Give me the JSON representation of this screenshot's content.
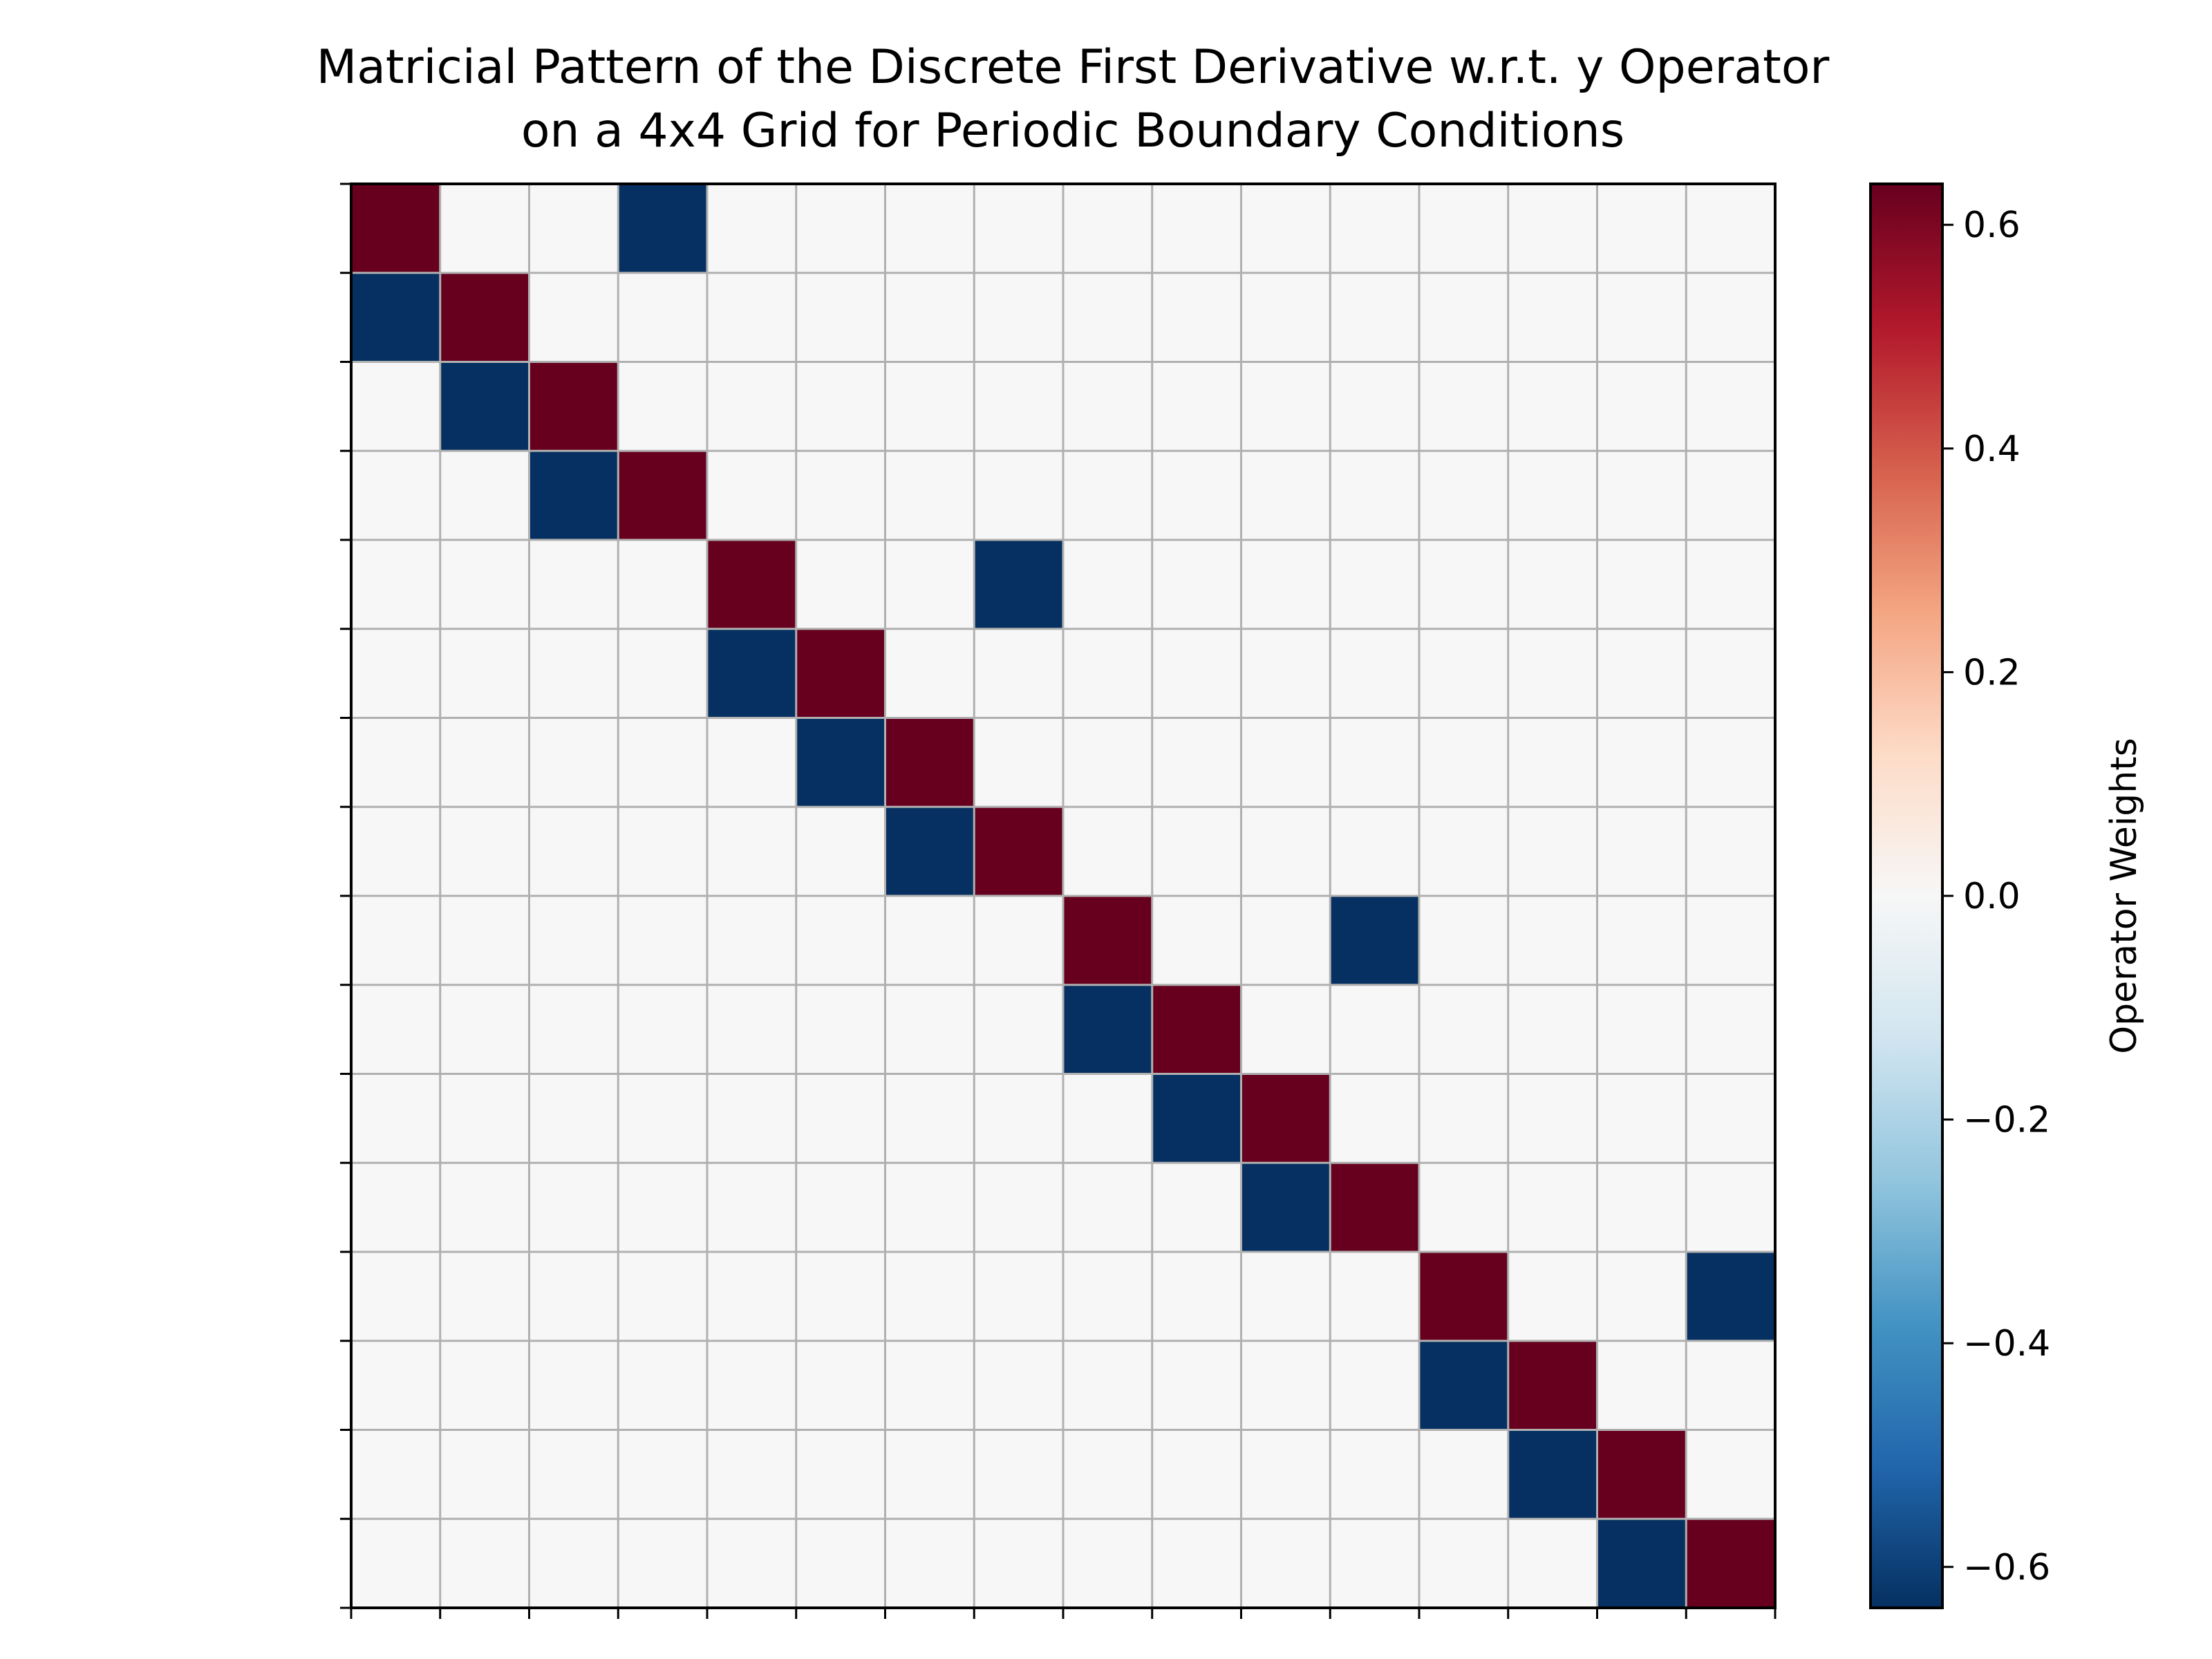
{
  "chart_data": {
    "type": "heatmap",
    "title": "Matricial Pattern of the Discrete First Derivative w.r.t. y Operator",
    "subtitle": "on a 4x4 Grid for Periodic Boundary Conditions",
    "rows": 16,
    "cols": 16,
    "grid": true,
    "x_tick_labels_visible": false,
    "y_tick_labels_visible": false,
    "colormap": "RdBu_r",
    "vmin": -0.6366,
    "vmax": 0.6366,
    "values": [
      [
        0.6366,
        0,
        0,
        -0.6366,
        0,
        0,
        0,
        0,
        0,
        0,
        0,
        0,
        0,
        0,
        0,
        0
      ],
      [
        -0.6366,
        0.6366,
        0,
        0,
        0,
        0,
        0,
        0,
        0,
        0,
        0,
        0,
        0,
        0,
        0,
        0
      ],
      [
        0,
        -0.6366,
        0.6366,
        0,
        0,
        0,
        0,
        0,
        0,
        0,
        0,
        0,
        0,
        0,
        0,
        0
      ],
      [
        0,
        0,
        -0.6366,
        0.6366,
        0,
        0,
        0,
        0,
        0,
        0,
        0,
        0,
        0,
        0,
        0,
        0
      ],
      [
        0,
        0,
        0,
        0,
        0.6366,
        0,
        0,
        -0.6366,
        0,
        0,
        0,
        0,
        0,
        0,
        0,
        0
      ],
      [
        0,
        0,
        0,
        0,
        -0.6366,
        0.6366,
        0,
        0,
        0,
        0,
        0,
        0,
        0,
        0,
        0,
        0
      ],
      [
        0,
        0,
        0,
        0,
        0,
        -0.6366,
        0.6366,
        0,
        0,
        0,
        0,
        0,
        0,
        0,
        0,
        0
      ],
      [
        0,
        0,
        0,
        0,
        0,
        0,
        -0.6366,
        0.6366,
        0,
        0,
        0,
        0,
        0,
        0,
        0,
        0
      ],
      [
        0,
        0,
        0,
        0,
        0,
        0,
        0,
        0,
        0.6366,
        0,
        0,
        -0.6366,
        0,
        0,
        0,
        0
      ],
      [
        0,
        0,
        0,
        0,
        0,
        0,
        0,
        0,
        -0.6366,
        0.6366,
        0,
        0,
        0,
        0,
        0,
        0
      ],
      [
        0,
        0,
        0,
        0,
        0,
        0,
        0,
        0,
        0,
        -0.6366,
        0.6366,
        0,
        0,
        0,
        0,
        0
      ],
      [
        0,
        0,
        0,
        0,
        0,
        0,
        0,
        0,
        0,
        0,
        -0.6366,
        0.6366,
        0,
        0,
        0,
        0
      ],
      [
        0,
        0,
        0,
        0,
        0,
        0,
        0,
        0,
        0,
        0,
        0,
        0,
        0.6366,
        0,
        0,
        -0.6366
      ],
      [
        0,
        0,
        0,
        0,
        0,
        0,
        0,
        0,
        0,
        0,
        0,
        0,
        -0.6366,
        0.6366,
        0,
        0
      ],
      [
        0,
        0,
        0,
        0,
        0,
        0,
        0,
        0,
        0,
        0,
        0,
        0,
        0,
        -0.6366,
        0.6366,
        0
      ],
      [
        0,
        0,
        0,
        0,
        0,
        0,
        0,
        0,
        0,
        0,
        0,
        0,
        0,
        0,
        -0.6366,
        0.6366
      ]
    ],
    "colorbar": {
      "label": "Operator Weights",
      "ticks": [
        0.6,
        0.4,
        0.2,
        0.0,
        -0.2,
        -0.4,
        -0.6
      ],
      "tick_labels": [
        "0.6",
        "0.4",
        "0.2",
        "0.0",
        "−0.2",
        "−0.4",
        "−0.6"
      ]
    },
    "colors": {
      "positive": "#67001f",
      "negative": "#053061",
      "zero": "#f7f7f7",
      "grid_line": "#b0b0b0"
    }
  }
}
